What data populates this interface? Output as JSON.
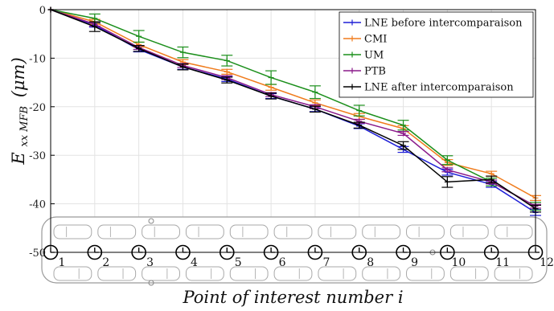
{
  "chart_data": {
    "type": "line",
    "title": "",
    "xlabel": "Point of interest number i",
    "ylabel_main": "E",
    "ylabel_sub": "xx MFB",
    "ylabel_unit": "(μm)",
    "x": [
      1,
      2,
      3,
      4,
      5,
      6,
      7,
      8,
      9,
      10,
      11,
      12
    ],
    "x_tick_labels": [
      "1",
      "2",
      "3",
      "4",
      "5",
      "6",
      "7",
      "8",
      "9",
      "10",
      "11",
      "12"
    ],
    "xlim": [
      1,
      12
    ],
    "ylim": [
      -50,
      0
    ],
    "yticks": [
      0,
      -10,
      -20,
      -30,
      -40,
      -50
    ],
    "ytick_labels": [
      "0",
      "-10",
      "-20",
      "-30",
      "-40",
      "-50"
    ],
    "grid": true,
    "legend_position": "top-right",
    "series": [
      {
        "name": "LNE before intercomparaison",
        "color": "#1f1fd6",
        "values": [
          0,
          -3.2,
          -8.2,
          -11.8,
          -14.3,
          -17.8,
          -20.5,
          -24.0,
          -28.8,
          -33.5,
          -36.0,
          -41.8
        ],
        "errors": [
          0,
          0.4,
          0.5,
          0.5,
          0.5,
          0.5,
          0.5,
          0.5,
          0.6,
          0.6,
          0.6,
          0.6
        ]
      },
      {
        "name": "CMI",
        "color": "#f07c1d",
        "values": [
          0,
          -2.5,
          -7.2,
          -10.8,
          -12.8,
          -16.0,
          -19.2,
          -22.0,
          -24.5,
          -31.5,
          -33.8,
          -38.8
        ],
        "errors": [
          0,
          0.5,
          0.5,
          0.5,
          0.5,
          0.6,
          0.6,
          0.6,
          0.6,
          0.6,
          0.5,
          0.5
        ]
      },
      {
        "name": "UM",
        "color": "#1b8f1b",
        "values": [
          0,
          -1.8,
          -5.5,
          -8.8,
          -10.5,
          -14.0,
          -17.0,
          -20.8,
          -23.8,
          -31.0,
          -35.5,
          -40.5
        ],
        "errors": [
          0,
          0.9,
          1.2,
          1.1,
          1.1,
          1.4,
          1.3,
          1.1,
          1.0,
          0.9,
          0.8,
          0.8
        ]
      },
      {
        "name": "PTB",
        "color": "#8a1a8a",
        "values": [
          0,
          -3.0,
          -7.8,
          -11.5,
          -14.0,
          -17.5,
          -20.0,
          -23.0,
          -25.5,
          -33.0,
          -35.5,
          -40.5
        ],
        "errors": [
          0,
          0.4,
          0.4,
          0.4,
          0.4,
          0.4,
          0.4,
          0.4,
          0.4,
          0.4,
          0.4,
          0.4
        ]
      },
      {
        "name": "LNE after intercomparaison",
        "color": "#000000",
        "values": [
          0,
          -3.5,
          -8.0,
          -11.8,
          -14.5,
          -17.8,
          -20.5,
          -23.8,
          -28.0,
          -35.5,
          -35.0,
          -41.0
        ],
        "errors": [
          0,
          1.0,
          0.6,
          0.6,
          0.6,
          0.6,
          0.6,
          0.6,
          0.8,
          1.1,
          0.7,
          0.7
        ]
      }
    ]
  }
}
